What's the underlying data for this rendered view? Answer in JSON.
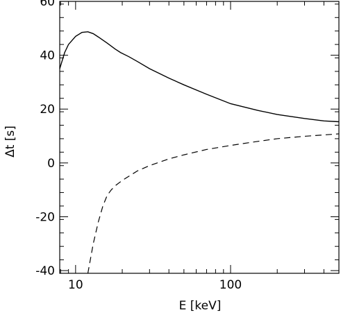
{
  "chart_data": {
    "type": "line",
    "title": "",
    "xlabel": "E [keV]",
    "ylabel": "Δt [s]",
    "xscale": "log",
    "xlim": [
      7.9,
      500
    ],
    "ylim": [
      -41,
      60
    ],
    "grid": false,
    "x_ticks": [
      10,
      100
    ],
    "x_tick_labels": [
      "10",
      "100"
    ],
    "y_ticks": [
      -40,
      -20,
      0,
      20,
      40,
      60
    ],
    "y_tick_labels": [
      "-40",
      "-20",
      "0",
      "20",
      "40",
      "60"
    ],
    "series": [
      {
        "style": "solid",
        "x": [
          7.9,
          8.5,
          9,
          10,
          11,
          12,
          13,
          14,
          16,
          18,
          19.5,
          22,
          25,
          30,
          40,
          50,
          70,
          100,
          150,
          200,
          300,
          400,
          500
        ],
        "y": [
          35,
          41,
          44,
          47,
          48.5,
          48.7,
          48,
          46.8,
          44.5,
          42.3,
          41,
          39.5,
          37.7,
          35,
          31.5,
          29,
          25.5,
          22,
          19.5,
          18,
          16.5,
          15.6,
          15.3
        ]
      },
      {
        "style": "dashed",
        "x": [
          12,
          13,
          14,
          15,
          16,
          17,
          18,
          20,
          25,
          30,
          40,
          50,
          70,
          100,
          150,
          200,
          300,
          400,
          500
        ],
        "y": [
          -41,
          -30,
          -22,
          -16,
          -12,
          -10,
          -8.5,
          -6.5,
          -3,
          -1,
          1.5,
          3,
          5,
          6.5,
          8,
          9,
          9.9,
          10.4,
          10.8
        ]
      }
    ]
  }
}
